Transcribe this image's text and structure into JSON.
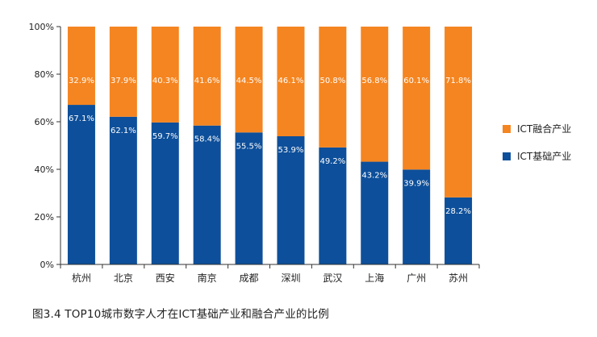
{
  "chart_data": {
    "type": "bar",
    "stacked": true,
    "categories": [
      "杭州",
      "北京",
      "西安",
      "南京",
      "成都",
      "深圳",
      "武汉",
      "上海",
      "广州",
      "苏州"
    ],
    "series": [
      {
        "name": "ICT基础产业",
        "color": "#0d4f9a",
        "values": [
          67.1,
          62.1,
          59.7,
          58.4,
          55.5,
          53.9,
          49.2,
          43.2,
          39.9,
          28.2
        ],
        "labels": [
          "67.1%",
          "62.1%",
          "59.7%",
          "58.4%",
          "55.5%",
          "53.9%",
          "49.2%",
          "43.2%",
          "39.9%",
          "28.2%"
        ]
      },
      {
        "name": "ICT融合产业",
        "color": "#f58520",
        "values": [
          32.9,
          37.9,
          40.3,
          41.6,
          44.5,
          46.1,
          50.8,
          56.8,
          60.1,
          71.8
        ],
        "labels": [
          "32.9%",
          "37.9%",
          "40.3%",
          "41.6%",
          "44.5%",
          "46.1%",
          "50.8%",
          "56.8%",
          "60.1%",
          "71.8%"
        ]
      }
    ],
    "ylim": [
      0,
      100
    ],
    "yticks": [
      0,
      20,
      40,
      60,
      80,
      100
    ],
    "ytick_labels": [
      "0%",
      "20%",
      "40%",
      "60%",
      "80%",
      "100%"
    ],
    "legend_position": "right",
    "grid": false
  },
  "caption": "图3.4 TOP10城市数字人才在ICT基础产业和融合产业的比例"
}
